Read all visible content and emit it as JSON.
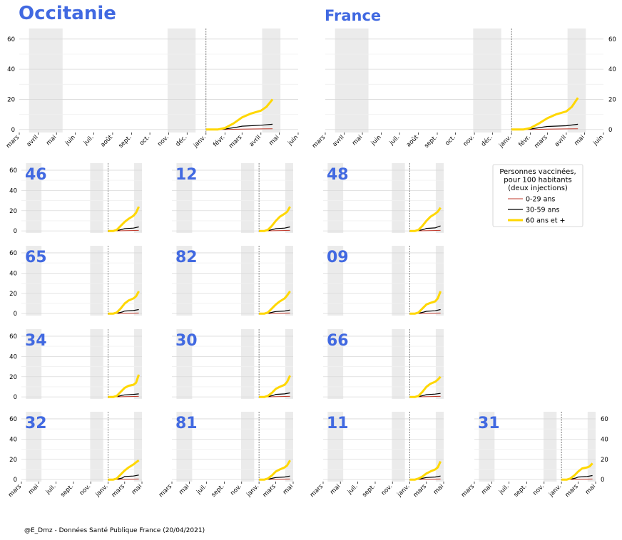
{
  "footer": "@E_Dmz - Données Santé Publique France (20/04/2021)",
  "colors": {
    "title": "#4169e1",
    "age_0_29": "#c0392b",
    "age_30_59": "#000000",
    "age_60_plus": "#ffd700",
    "lockdown_shade": "#ebebeb"
  },
  "chart_data": {
    "type": "line",
    "title": "",
    "ylabel": "",
    "ylim": [
      0,
      65
    ],
    "yticks": [
      0,
      20,
      40,
      60
    ],
    "grid": true,
    "legend": {
      "placement": "top-right",
      "title": "Personnes vaccinées,\npour 100 habitants\n(deux injections)",
      "entries": [
        "0-29 ans",
        "30-59 ans",
        "60 ans et +"
      ]
    },
    "x_months_top": [
      "mars",
      "avril",
      "mai",
      "juin",
      "juil.",
      "août",
      "sept.",
      "oct.",
      "nov.",
      "déc.",
      "janv.",
      "févr.",
      "mars",
      "avril",
      "mai",
      "juin"
    ],
    "x_months_bottom": [
      "mars",
      "mai",
      "juil.",
      "sept.",
      "nov.",
      "janv.",
      "mars",
      "mai"
    ],
    "shaded_periods": [
      [
        "2020-03-17",
        "2020-05-11"
      ],
      [
        "2020-10-30",
        "2020-12-15"
      ],
      [
        "2021-04-03",
        "2021-05-03"
      ]
    ],
    "vaccination_start": "2021-01-01",
    "panels": [
      {
        "name": "Occitanie",
        "size": "large",
        "series": [
          {
            "name": "0-29 ans",
            "x": [
              "2021-01-01",
              "2021-02-01",
              "2021-03-01",
              "2021-04-01",
              "2021-04-20"
            ],
            "y": [
              0,
              0,
              0.2,
              0.4,
              0.5
            ]
          },
          {
            "name": "30-59 ans",
            "x": [
              "2021-01-01",
              "2021-02-01",
              "2021-02-20",
              "2021-03-01",
              "2021-04-01",
              "2021-04-20"
            ],
            "y": [
              0,
              0.3,
              1.5,
              2.2,
              2.8,
              3.5
            ]
          },
          {
            "name": "60 ans et +",
            "x": [
              "2021-01-01",
              "2021-01-20",
              "2021-02-01",
              "2021-02-15",
              "2021-03-01",
              "2021-03-15",
              "2021-04-01",
              "2021-04-10",
              "2021-04-20"
            ],
            "y": [
              0,
              0,
              1,
              4,
              8,
              10.5,
              12.5,
              15,
              20
            ]
          }
        ]
      },
      {
        "name": "France",
        "size": "large",
        "series": [
          {
            "name": "0-29 ans",
            "x": [
              "2021-01-01",
              "2021-02-01",
              "2021-03-01",
              "2021-04-01",
              "2021-04-20"
            ],
            "y": [
              0,
              0,
              0.2,
              0.4,
              0.5
            ]
          },
          {
            "name": "30-59 ans",
            "x": [
              "2021-01-01",
              "2021-02-01",
              "2021-02-20",
              "2021-03-01",
              "2021-04-01",
              "2021-04-20"
            ],
            "y": [
              0,
              0.3,
              1.5,
              2,
              2.5,
              3.5
            ]
          },
          {
            "name": "60 ans et +",
            "x": [
              "2021-01-01",
              "2021-01-20",
              "2021-02-01",
              "2021-02-15",
              "2021-03-01",
              "2021-03-15",
              "2021-04-01",
              "2021-04-10",
              "2021-04-20"
            ],
            "y": [
              0,
              0,
              1,
              4,
              7.5,
              10,
              12,
              15,
              21
            ]
          }
        ]
      },
      {
        "name": "46",
        "size": "small",
        "y60": [
          0,
          0,
          1,
          5,
          9,
          12,
          15,
          18,
          24
        ],
        "y30": [
          0,
          0.3,
          1.5,
          2.2,
          2.8,
          4
        ]
      },
      {
        "name": "12",
        "size": "small",
        "y60": [
          0,
          0,
          1,
          5,
          10,
          14,
          17,
          19,
          24
        ],
        "y30": [
          0,
          0.3,
          1.5,
          2.2,
          2.8,
          4
        ]
      },
      {
        "name": "48",
        "size": "small",
        "y60": [
          0,
          0,
          1,
          5,
          10,
          14,
          17,
          19,
          23
        ],
        "y30": [
          0,
          0.3,
          1.5,
          2.5,
          3,
          5
        ]
      },
      {
        "name": "65",
        "size": "small",
        "y60": [
          0,
          0,
          1,
          5,
          10,
          13,
          15,
          17,
          22
        ],
        "y30": [
          0,
          0.3,
          1.5,
          2.5,
          3,
          4
        ]
      },
      {
        "name": "82",
        "size": "small",
        "y60": [
          0,
          0,
          1,
          5,
          9,
          12,
          15,
          18,
          22
        ],
        "y30": [
          0,
          0.3,
          1.5,
          2,
          2.5,
          3.5
        ]
      },
      {
        "name": "09",
        "size": "small",
        "y60": [
          0,
          0,
          1,
          5,
          9,
          10.5,
          12,
          15,
          22
        ],
        "y30": [
          0,
          0.3,
          1.5,
          2.2,
          2.8,
          4
        ]
      },
      {
        "name": "34",
        "size": "small",
        "y60": [
          0,
          0,
          1,
          5,
          9,
          11,
          12,
          14,
          22
        ],
        "y30": [
          0,
          0.3,
          1.5,
          2,
          2.5,
          3
        ]
      },
      {
        "name": "30",
        "size": "small",
        "y60": [
          0,
          0,
          1,
          4,
          8,
          10,
          12,
          15,
          21
        ],
        "y30": [
          0,
          0.3,
          1.5,
          2.5,
          3,
          4
        ]
      },
      {
        "name": "66",
        "size": "small",
        "y60": [
          0,
          0,
          1,
          5,
          10,
          13,
          15,
          17,
          20
        ],
        "y30": [
          0,
          0.3,
          1.5,
          2.2,
          2.8,
          3.5
        ]
      },
      {
        "name": "32",
        "size": "small",
        "y60": [
          0,
          0,
          1,
          5,
          9,
          12,
          15,
          17,
          19
        ],
        "y30": [
          0,
          0.3,
          1.5,
          3,
          3.5,
          4.5
        ]
      },
      {
        "name": "81",
        "size": "small",
        "y60": [
          0,
          0,
          1,
          4,
          8,
          10,
          12,
          14,
          19
        ],
        "y30": [
          0,
          0.3,
          1.5,
          2,
          2.5,
          3.5
        ]
      },
      {
        "name": "11",
        "size": "small",
        "y60": [
          0,
          0,
          1,
          3,
          6,
          8,
          10,
          12,
          18
        ],
        "y30": [
          0,
          0.3,
          1.5,
          2,
          2.5,
          3.5
        ]
      },
      {
        "name": "31",
        "size": "small",
        "y60": [
          0,
          0,
          1,
          4,
          8,
          11,
          12,
          13,
          16
        ],
        "y30": [
          0,
          0.3,
          1.5,
          2.5,
          3,
          4
        ]
      }
    ]
  }
}
